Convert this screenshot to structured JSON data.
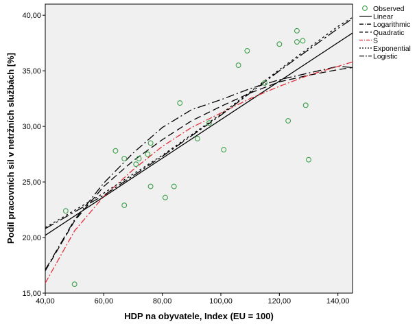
{
  "chart_data": {
    "type": "scatter",
    "xlabel": "HDP na obyvatele, Index (EU = 100)",
    "ylabel": "Podíl pracovních sil v netržních službách [%]",
    "xlim": [
      40,
      145
    ],
    "ylim": [
      15,
      41
    ],
    "x_ticks": [
      "40,00",
      "60,00",
      "80,00",
      "100,00",
      "120,00",
      "140,00"
    ],
    "y_ticks": [
      "15,00",
      "20,00",
      "25,00",
      "30,00",
      "35,00",
      "40,00"
    ],
    "legend_position": "right",
    "observed": {
      "name": "Observed",
      "color": "#3aa048",
      "points": [
        {
          "x": 47,
          "y": 22.4
        },
        {
          "x": 50,
          "y": 15.8
        },
        {
          "x": 64,
          "y": 27.8
        },
        {
          "x": 67,
          "y": 27.1
        },
        {
          "x": 67,
          "y": 22.9
        },
        {
          "x": 71,
          "y": 26.6
        },
        {
          "x": 72,
          "y": 27.1
        },
        {
          "x": 75,
          "y": 27.5
        },
        {
          "x": 76,
          "y": 28.5
        },
        {
          "x": 76,
          "y": 24.6
        },
        {
          "x": 81,
          "y": 23.6
        },
        {
          "x": 84,
          "y": 24.6
        },
        {
          "x": 86,
          "y": 32.1
        },
        {
          "x": 92,
          "y": 28.9
        },
        {
          "x": 96,
          "y": 30.3
        },
        {
          "x": 101,
          "y": 27.9
        },
        {
          "x": 106,
          "y": 35.5
        },
        {
          "x": 109,
          "y": 36.8
        },
        {
          "x": 115,
          "y": 33.9
        },
        {
          "x": 120,
          "y": 37.4
        },
        {
          "x": 123,
          "y": 30.5
        },
        {
          "x": 126,
          "y": 38.6
        },
        {
          "x": 126,
          "y": 37.6
        },
        {
          "x": 128,
          "y": 37.7
        },
        {
          "x": 129,
          "y": 31.9
        },
        {
          "x": 130,
          "y": 27.0
        }
      ]
    },
    "series": [
      {
        "name": "Linear",
        "color": "#000000",
        "dash": "",
        "x": [
          40,
          145
        ],
        "y": [
          20.2,
          38.4
        ]
      },
      {
        "name": "Logarithmic",
        "color": "#000000",
        "dash": "12 4 2 4",
        "x": [
          40,
          50,
          60,
          70,
          80,
          90,
          100,
          110,
          120,
          130,
          140,
          145
        ],
        "y": [
          17.1,
          21.6,
          24.9,
          27.6,
          29.9,
          31.5,
          32.4,
          33.4,
          34.2,
          34.8,
          35.4,
          35.3
        ]
      },
      {
        "name": "Quadratic",
        "color": "#000000",
        "dash": "10 5",
        "x": [
          40,
          50,
          60,
          70,
          80,
          90,
          100,
          110,
          120,
          130,
          140,
          145
        ],
        "y": [
          17.0,
          21.5,
          24.6,
          26.9,
          28.8,
          30.5,
          31.8,
          33.0,
          34.0,
          34.6,
          35.1,
          35.3
        ]
      },
      {
        "name": "S",
        "color": "#e0303a",
        "dash": "9 3 2 3",
        "x": [
          40,
          50,
          60,
          70,
          80,
          90,
          100,
          110,
          120,
          130,
          140,
          145
        ],
        "y": [
          15.9,
          20.6,
          23.7,
          26.1,
          28.2,
          29.9,
          31.2,
          32.5,
          33.6,
          34.6,
          35.4,
          35.8
        ]
      },
      {
        "name": "Exponential",
        "color": "#000000",
        "dash": "3 4",
        "x": [
          40,
          60,
          80,
          100,
          120,
          140,
          145
        ],
        "y": [
          20.9,
          24.0,
          27.4,
          31.1,
          35.1,
          39.0,
          39.8
        ]
      },
      {
        "name": "Logistic",
        "color": "#000000",
        "dash": "14 4 3 4",
        "x": [
          40,
          60,
          80,
          100,
          120,
          140,
          145
        ],
        "y": [
          20.8,
          23.8,
          27.3,
          31.0,
          35.0,
          38.8,
          39.7
        ]
      }
    ]
  }
}
